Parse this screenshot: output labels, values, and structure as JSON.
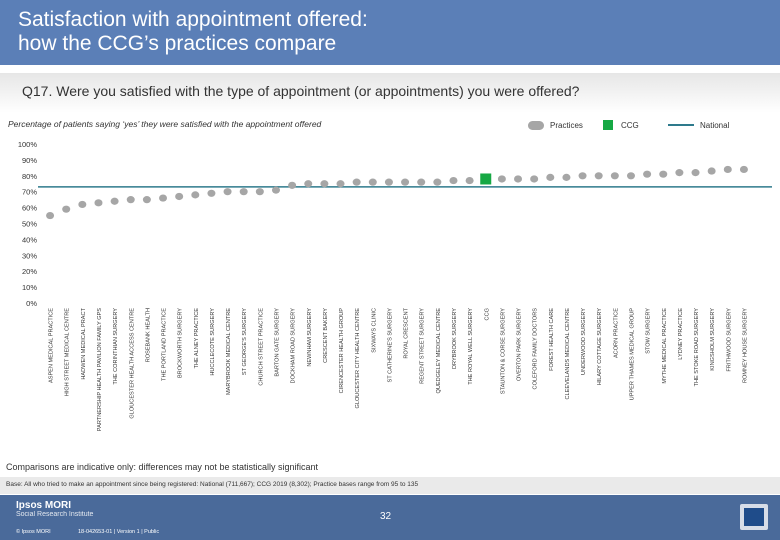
{
  "header": {
    "title_line1": "Satisfaction with appointment offered:",
    "title_line2": "how the CCG’s practices compare"
  },
  "question": "Q17. Were you satisfied with the type of appointment (or appointments) you were offered?",
  "subtitle": "Percentage of patients saying ‘yes’ they were satisfied with the appointment offered",
  "legend": {
    "practices": "Practices",
    "ccg": "CCG",
    "national": "National"
  },
  "colors": {
    "practice": "#a6a6a6",
    "ccg": "#16a844",
    "national": "#2e7a8c",
    "header": "#5b7fb7"
  },
  "chart_data": {
    "type": "scatter",
    "title": "Percentage of patients saying ‘yes’ they were satisfied with the appointment offered",
    "ylim": [
      0,
      100
    ],
    "yticks": [
      0,
      10,
      20,
      30,
      40,
      50,
      60,
      70,
      80,
      90,
      100
    ],
    "ytick_suffix": "%",
    "national_value": 73,
    "ccg_index": 27,
    "categories": [
      "ASPEN MEDICAL PRACTICE",
      "HIGH STREET MEDICAL CENTRE",
      "HADWEN MEDICAL PRACT",
      "PARTNERSHIP HEALTH PAVILION FAMILY GPS",
      "THE CORINTHIAN SURGERY",
      "GLOUCESTER HEALTH ACCESS CENTRE",
      "ROSEBANK HEALTH",
      "THE PORTLAND PRACTICE",
      "BROCKWORTH SURGERY",
      "THE ALNEY PRACTICE",
      "HUCCLECOTE SURGERY",
      "MARYBROOK MEDICAL CENTRE",
      "ST GEORGE'S SURGERY",
      "CHURCH STREET PRACTICE",
      "BARTON GATE SURGERY",
      "DOCKHAM ROAD SURGERY",
      "NEWNHAM SURGERY",
      "CRESCENT BAKERY",
      "CIRENCESTER HEALTH GROUP",
      "GLOUCESTER CITY HEALTH CENTRE",
      "SIXWAYS CLINIC",
      "ST CATHERINE'S SURGERY",
      "ROYAL CRESCENT",
      "REGENT STREET SURGERY",
      "QUEDGELEY MEDICAL CENTRE",
      "DRYBROOK SURGERY",
      "THE ROYAL WELL SURGERY",
      "CCG",
      "STAUNTON & CORSE SURGERY",
      "OVERTON PARK SURGERY",
      "COLEFORD FAMILY DOCTORS",
      "FOREST HEALTH CARE",
      "CLEEVELANDS MEDICAL CENTRE",
      "UNDERWOOD SURGERY",
      "HILARY COTTAGE SURGERY",
      "ACORN PRACTICE",
      "UPPER THAMES MEDICAL GROUP",
      "STOW SURGERY",
      "MYTHE MEDICAL PRACTICE",
      "LYDNEY PRACTICE",
      "THE STOKE ROAD SURGERY",
      "KINGSHOLM SURGERY",
      "FRITHWOOD SURGERY",
      "ROMNEY HOUSE SURGERY"
    ],
    "values": [
      55,
      59,
      62,
      63,
      64,
      65,
      65,
      66,
      67,
      68,
      69,
      70,
      70,
      70,
      71,
      74,
      75,
      75,
      75,
      76,
      76,
      76,
      76,
      76,
      76,
      77,
      77,
      78,
      78,
      78,
      78,
      79,
      79,
      80,
      80,
      80,
      80,
      81,
      81,
      82,
      82,
      83,
      84,
      84
    ],
    "xlabel": "",
    "ylabel": ""
  },
  "note": "Comparisons are indicative only: differences may not be statistically significant",
  "base": "Base: All who tried to make an appointment since being registered: National (711,667); CCG 2019 (8,302); Practice bases range from 95 to 135",
  "footer": {
    "brand": "Ipsos MORI",
    "institute": "Social Research Institute",
    "copyright": "© Ipsos MORI",
    "job": "18-042653-01 | Version 1 | Public",
    "page": "32"
  }
}
